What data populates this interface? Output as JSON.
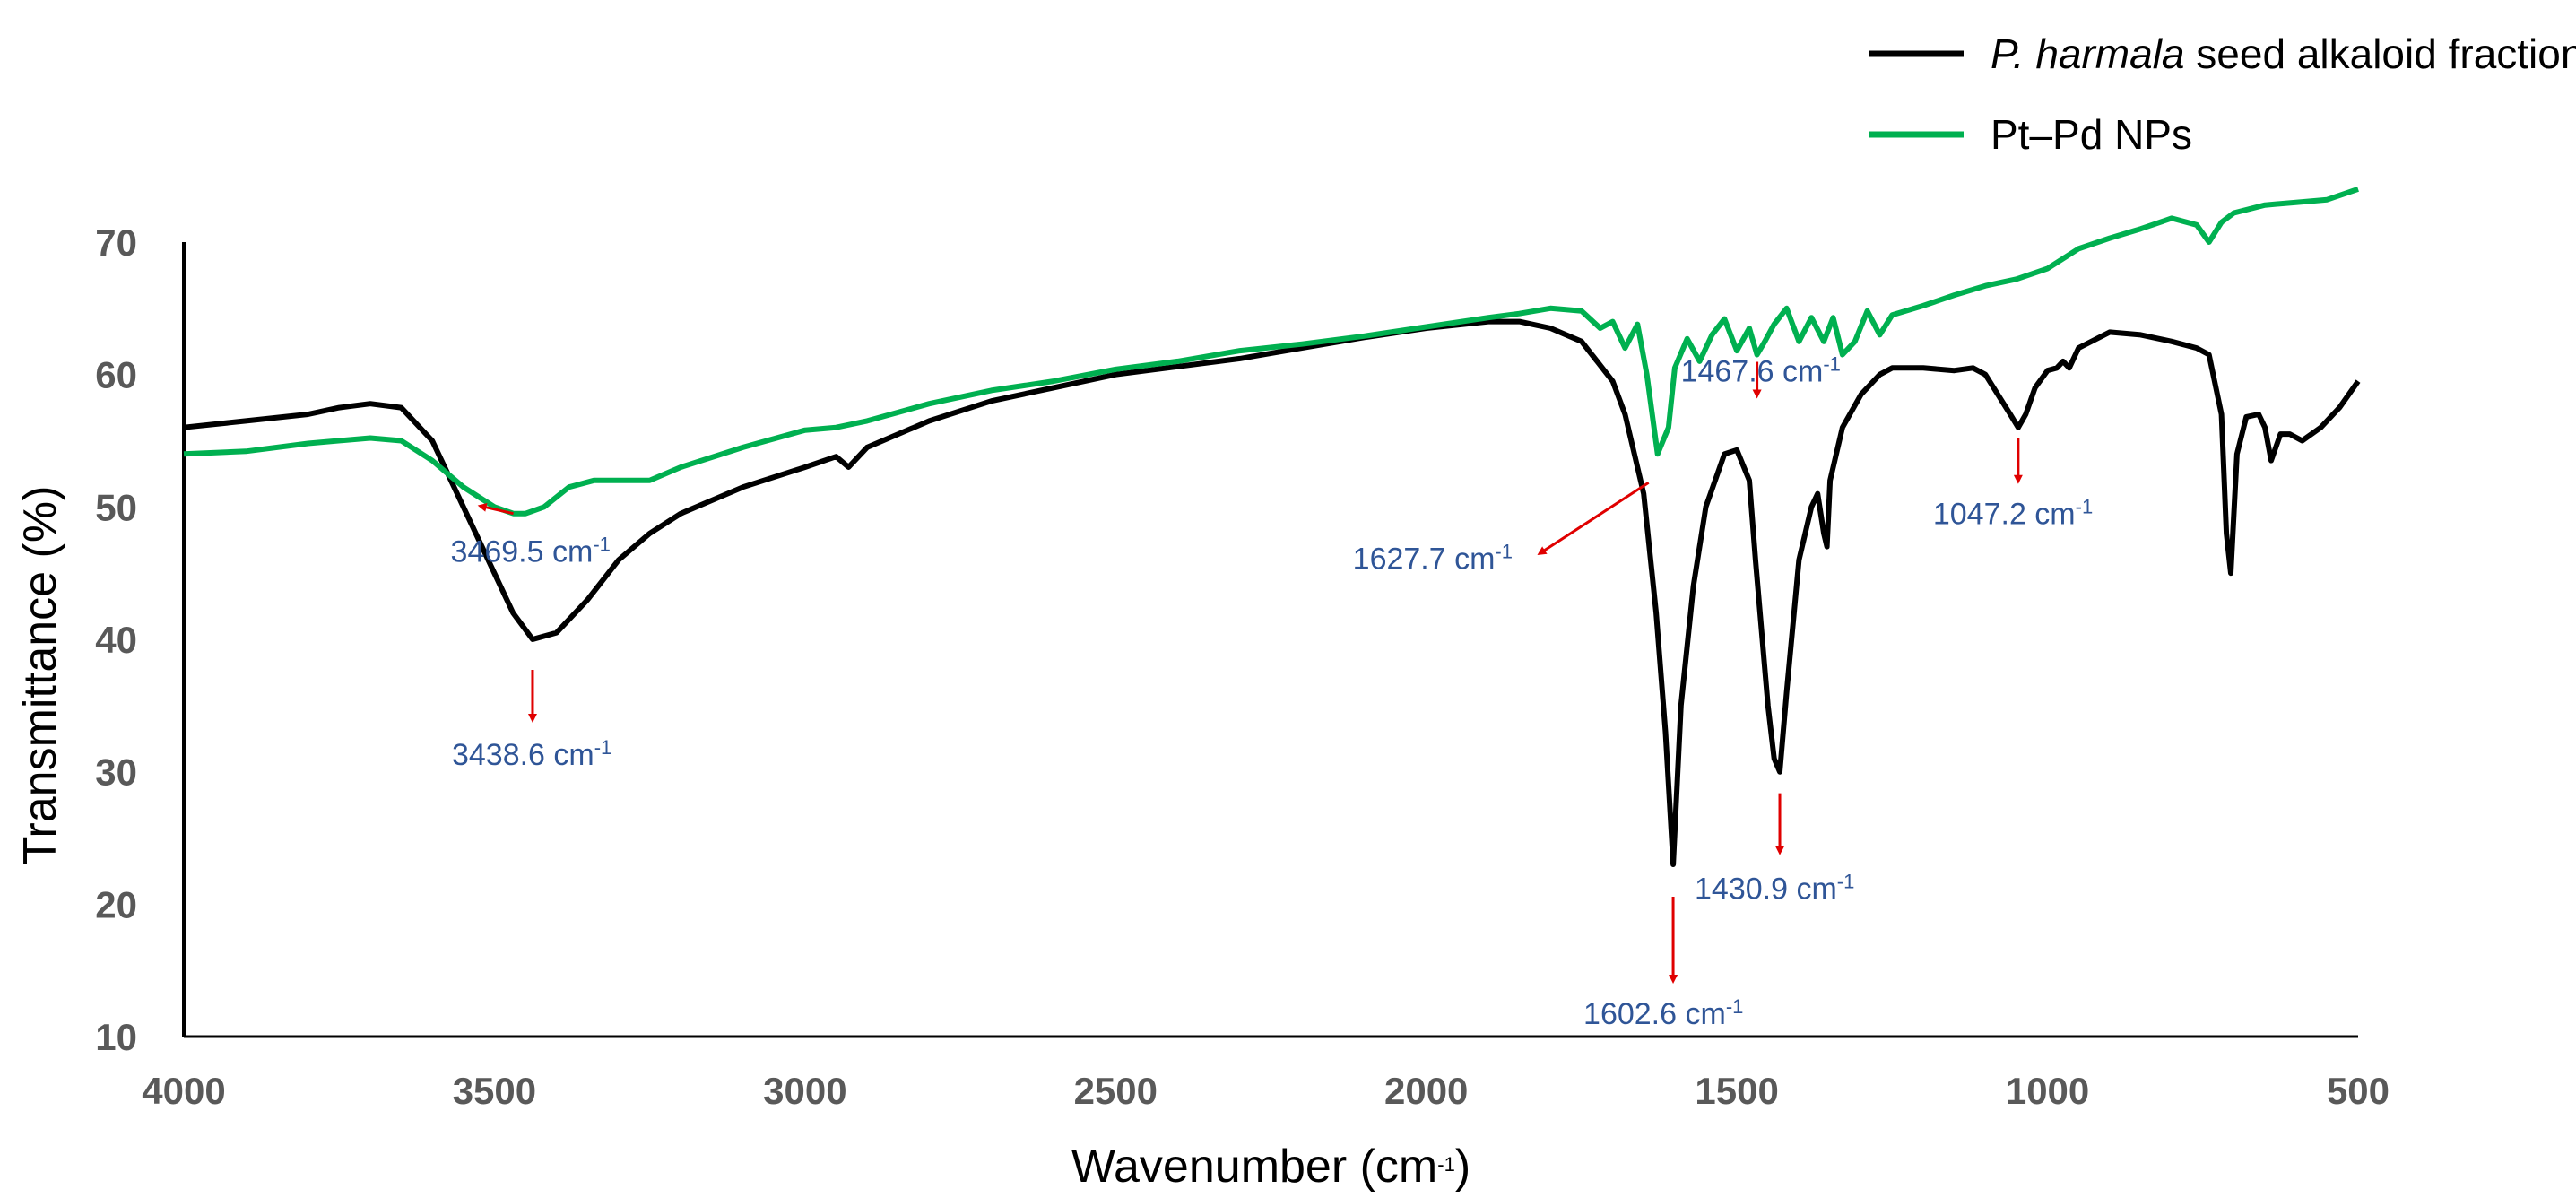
{
  "chart_data": {
    "type": "line",
    "xlabel": "Wavenumber (cm",
    "xlabel_sup": "-1",
    "xlabel_close": ")",
    "ylabel": "Transmittance (%)",
    "xlim": [
      4000,
      500
    ],
    "ylim": [
      10,
      70
    ],
    "x_reversed": true,
    "xticks": [
      4000,
      3500,
      3000,
      2500,
      2000,
      1500,
      1000,
      500
    ],
    "yticks": [
      10,
      20,
      30,
      40,
      50,
      60,
      70
    ],
    "legend": {
      "placement": "top-right",
      "entries": [
        {
          "name_italic": "P. harmala",
          "name_rest": " seed alkaloid fraction",
          "color": "#000000"
        },
        {
          "name_italic": "",
          "name_rest": "Pt–Pd NPs",
          "color": "#00b050"
        }
      ]
    },
    "series": [
      {
        "name": "P. harmala seed alkaloid fraction",
        "color": "#000000",
        "x": [
          4000,
          3900,
          3800,
          3750,
          3700,
          3650,
          3600,
          3550,
          3500,
          3470,
          3438.6,
          3400,
          3350,
          3300,
          3250,
          3200,
          3100,
          3000,
          2950,
          2930,
          2900,
          2800,
          2700,
          2600,
          2500,
          2400,
          2300,
          2200,
          2100,
          2000,
          1900,
          1850,
          1800,
          1750,
          1700,
          1680,
          1650,
          1630,
          1615,
          1602.6,
          1590,
          1570,
          1550,
          1520,
          1500,
          1480,
          1470,
          1450,
          1440,
          1430.9,
          1420,
          1400,
          1380,
          1370,
          1360,
          1355,
          1350,
          1330,
          1300,
          1270,
          1250,
          1200,
          1150,
          1120,
          1100,
          1080,
          1060,
          1047.2,
          1035,
          1020,
          1000,
          985,
          975,
          965,
          950,
          900,
          850,
          800,
          760,
          740,
          720,
          712,
          705,
          695,
          680,
          660,
          650,
          640,
          625,
          610,
          590,
          560,
          530,
          500
        ],
        "y": [
          56,
          56.5,
          57,
          57.5,
          57.8,
          57.5,
          55,
          50,
          45,
          42,
          40,
          40.5,
          43,
          46,
          48,
          49.5,
          51.5,
          53,
          53.8,
          53,
          54.5,
          56.5,
          58,
          59,
          60,
          60.6,
          61.2,
          62,
          62.8,
          63.5,
          64,
          64,
          63.5,
          62.5,
          59.5,
          57,
          51,
          42,
          33,
          23,
          35,
          44,
          50,
          54,
          54.3,
          52,
          46,
          35,
          31,
          30,
          36,
          46,
          50,
          51,
          48,
          47,
          52,
          56,
          58.5,
          60,
          60.5,
          60.5,
          60.3,
          60.5,
          60,
          58.5,
          57,
          56,
          57,
          59,
          60.3,
          60.5,
          61,
          60.5,
          62,
          63.2,
          63,
          62.5,
          62,
          61.5,
          57,
          48,
          45,
          54,
          56.8,
          57,
          56,
          53.5,
          55.5,
          55.5,
          55,
          56,
          57.5,
          59.5
        ]
      },
      {
        "name": "Pt–Pd NPs",
        "color": "#00b050",
        "x": [
          4000,
          3900,
          3800,
          3700,
          3650,
          3600,
          3550,
          3500,
          3469.5,
          3450,
          3420,
          3380,
          3340,
          3300,
          3250,
          3200,
          3100,
          3000,
          2950,
          2900,
          2800,
          2700,
          2600,
          2500,
          2400,
          2300,
          2200,
          2100,
          2000,
          1900,
          1850,
          1800,
          1750,
          1720,
          1700,
          1680,
          1660,
          1645,
          1627.7,
          1610,
          1600,
          1580,
          1560,
          1540,
          1520,
          1500,
          1480,
          1467.6,
          1455,
          1440,
          1420,
          1400,
          1380,
          1360,
          1345,
          1330,
          1310,
          1290,
          1270,
          1250,
          1200,
          1150,
          1100,
          1050,
          1000,
          950,
          900,
          850,
          800,
          760,
          740,
          720,
          700,
          650,
          600,
          550,
          500
        ],
        "y": [
          54,
          54.2,
          54.8,
          55.2,
          55,
          53.5,
          51.5,
          50,
          49.5,
          49.5,
          50,
          51.5,
          52,
          52,
          52,
          53,
          54.5,
          55.8,
          56,
          56.5,
          57.8,
          58.8,
          59.5,
          60.4,
          61,
          61.8,
          62.3,
          62.9,
          63.6,
          64.3,
          64.6,
          65,
          64.8,
          63.5,
          64,
          62,
          63.8,
          60,
          54,
          56,
          60.5,
          62.7,
          61,
          63,
          64.2,
          61.8,
          63.5,
          61.5,
          62.5,
          63.8,
          65,
          62.5,
          64.3,
          62.5,
          64.3,
          61.5,
          62.5,
          64.8,
          63,
          64.5,
          65.2,
          66,
          66.7,
          67.2,
          68,
          69.5,
          70.3,
          71,
          71.8,
          71.3,
          70,
          71.5,
          72.2,
          72.8,
          73,
          73.2,
          74
        ]
      }
    ],
    "annotations": [
      {
        "label": "3469.5 cm",
        "sup": "-1",
        "peak_x": 3469.5,
        "peak_y": 49.5,
        "color": "#2f5597"
      },
      {
        "label": "3438.6 cm",
        "sup": "-1",
        "peak_x": 3438.6,
        "peak_y": 40,
        "color": "#2f5597"
      },
      {
        "label": "1627.7 cm",
        "sup": "-1",
        "peak_x": 1627.7,
        "peak_y": 54,
        "color": "#2f5597"
      },
      {
        "label": "1467.6 cm",
        "sup": "-1",
        "peak_x": 1467.6,
        "peak_y": 61.5,
        "color": "#2f5597"
      },
      {
        "label": "1430.9 cm",
        "sup": "-1",
        "peak_x": 1430.9,
        "peak_y": 30,
        "color": "#2f5597"
      },
      {
        "label": "1602.6 cm",
        "sup": "-1",
        "peak_x": 1602.6,
        "peak_y": 23,
        "color": "#2f5597"
      },
      {
        "label": "1047.2 cm",
        "sup": "-1",
        "peak_x": 1047.2,
        "peak_y": 56,
        "color": "#2f5597"
      }
    ],
    "arrow_color": "#e00000"
  }
}
